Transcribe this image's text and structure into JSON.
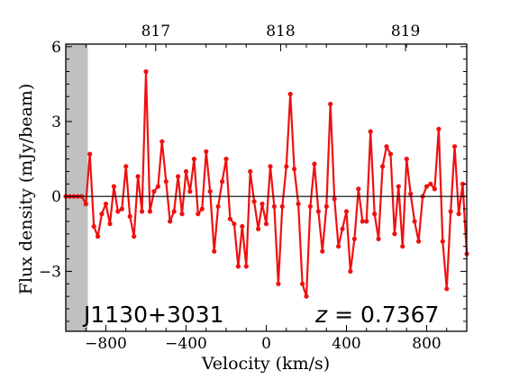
{
  "chart_data": {
    "type": "line",
    "xlabel": "Velocity (km/s)",
    "ylabel": "Flux density (mJy/beam)",
    "xlim": [
      -1000,
      1000
    ],
    "ylim": [
      -5.4,
      6.1
    ],
    "x_ticks": [
      -800,
      -400,
      0,
      400,
      800
    ],
    "x_tick_labels": [
      "−800",
      "−400",
      "0",
      "400",
      "800"
    ],
    "y_ticks": [
      -3,
      0,
      3,
      6
    ],
    "y_tick_labels": [
      "−3",
      "0",
      "3",
      "6"
    ],
    "top_axis_ticks": [
      817,
      818,
      819
    ],
    "top_axis_tick_labels": [
      "817",
      "818",
      "819"
    ],
    "top_axis_value_at_xlim": [
      816.28,
      819.49
    ],
    "masked_region": [
      -1000,
      -890
    ],
    "grid": false,
    "annotations": {
      "source": "J1130+3031",
      "redshift_symbol": "z",
      "redshift_value": " = 0.7367"
    },
    "colors": {
      "series": "#ee1111",
      "mask": "#c0c0c0",
      "zero_line": "#000000"
    },
    "series": [
      {
        "x": [
          -1000,
          -980,
          -960,
          -940,
          -920,
          -900,
          -880,
          -860,
          -840,
          -820,
          -800,
          -780,
          -760,
          -740,
          -720,
          -700,
          -680,
          -660,
          -640,
          -620,
          -600,
          -580,
          -560,
          -540,
          -520,
          -500,
          -480,
          -460,
          -440,
          -420,
          -400,
          -380,
          -360,
          -340,
          -320,
          -300,
          -280,
          -260,
          -240,
          -220,
          -200,
          -180,
          -160,
          -140,
          -120,
          -100,
          -80,
          -60,
          -40,
          -20,
          0,
          20,
          40,
          60,
          80,
          100,
          120,
          140,
          160,
          180,
          200,
          220,
          240,
          260,
          280,
          300,
          320,
          340,
          360,
          380,
          400,
          420,
          440,
          460,
          480,
          500,
          520,
          540,
          560,
          580,
          600,
          620,
          640,
          660,
          680,
          700,
          720,
          740,
          760,
          780,
          800,
          820,
          840,
          860,
          880,
          900,
          920,
          940,
          960,
          980,
          1000
        ],
        "y": [
          0.0,
          0.0,
          0.0,
          0.0,
          0.0,
          -0.3,
          1.7,
          -1.2,
          -1.6,
          -0.7,
          -0.3,
          -1.1,
          0.4,
          -0.6,
          -0.5,
          1.2,
          -0.8,
          -1.6,
          0.8,
          -0.6,
          5.0,
          -0.6,
          0.2,
          0.4,
          2.2,
          0.6,
          -1.0,
          -0.6,
          0.8,
          -0.7,
          1.0,
          0.2,
          1.5,
          -0.7,
          -0.5,
          1.8,
          0.2,
          -2.2,
          -0.4,
          0.6,
          1.5,
          -0.9,
          -1.1,
          -2.8,
          -1.2,
          -2.8,
          1.0,
          -0.2,
          -1.3,
          -0.3,
          -1.1,
          1.2,
          -0.4,
          -3.5,
          -0.4,
          1.2,
          4.1,
          1.1,
          -0.3,
          -3.5,
          -4.0,
          -0.4,
          1.3,
          -0.6,
          -2.2,
          -0.4,
          3.7,
          -0.1,
          -2.0,
          -1.3,
          -0.6,
          -3.0,
          -1.7,
          0.3,
          -1.0,
          -1.0,
          2.6,
          -0.7,
          -1.7,
          1.2,
          2.0,
          1.7,
          -1.5,
          0.4,
          -2.0,
          1.5,
          0.1,
          -1.0,
          -1.8,
          0.0,
          0.4,
          0.5,
          0.3,
          2.7,
          -1.8,
          -3.7,
          -0.6,
          2.0,
          -0.7,
          0.5,
          -2.3
        ]
      }
    ]
  }
}
